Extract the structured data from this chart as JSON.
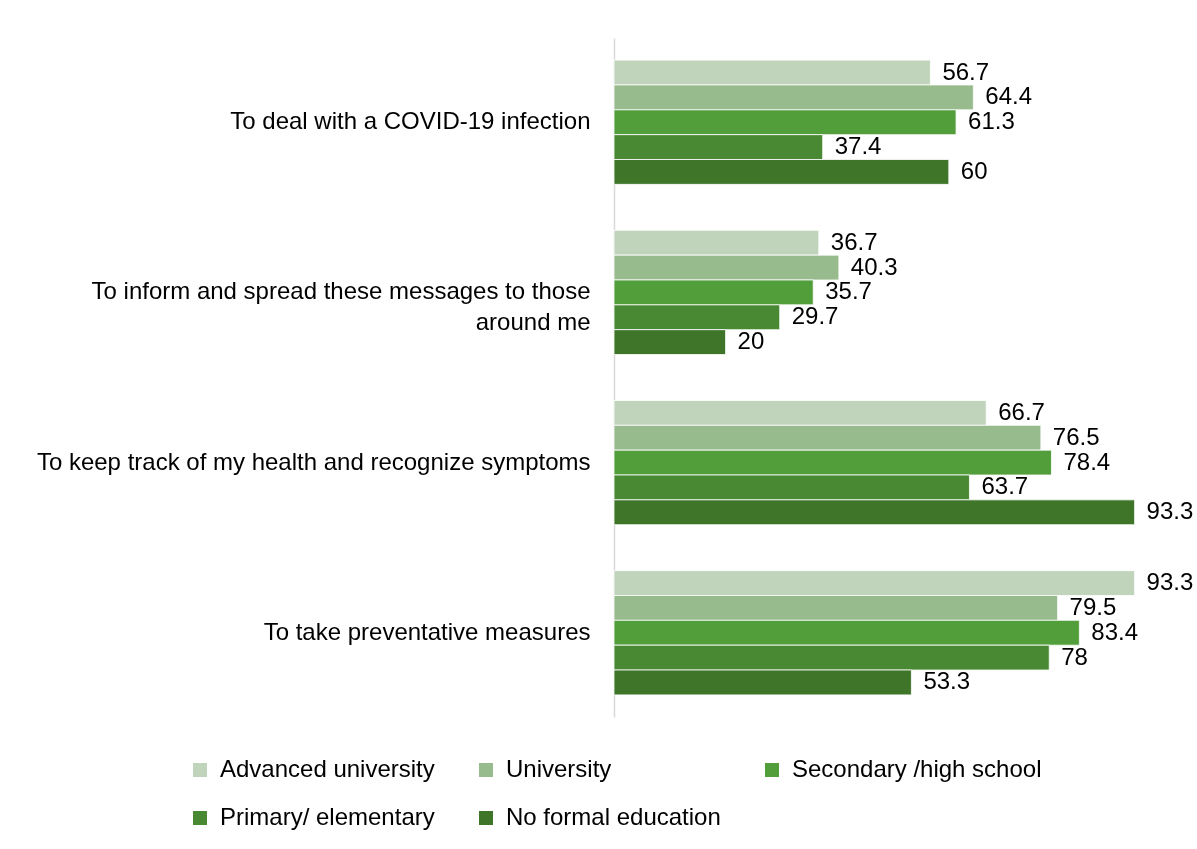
{
  "chart_data": {
    "type": "bar",
    "orientation": "horizontal",
    "data_labels": true,
    "legend": "bottom",
    "tick_labels": "y",
    "categories": [
      "To deal with a COVID-19 infection",
      "To inform and spread these messages to those around me",
      "To keep track of my health and recognize symptoms",
      "To take preventative measures"
    ],
    "series": [
      {
        "name": "Advanced university",
        "color": "#c0d4bb",
        "values": [
          56.7,
          36.7,
          66.7,
          93.3
        ]
      },
      {
        "name": "University",
        "color": "#97bb8c",
        "values": [
          64.4,
          40.3,
          76.5,
          79.5
        ]
      },
      {
        "name": "Secondary /high school",
        "color": "#529e3b",
        "values": [
          61.3,
          35.7,
          78.4,
          83.4
        ]
      },
      {
        "name": "Primary/ elementary",
        "color": "#4a8933",
        "values": [
          37.4,
          29.7,
          63.7,
          78
        ]
      },
      {
        "name": "No formal education",
        "color": "#3e7529",
        "values": [
          60,
          20,
          93.3,
          53.3
        ]
      }
    ]
  }
}
